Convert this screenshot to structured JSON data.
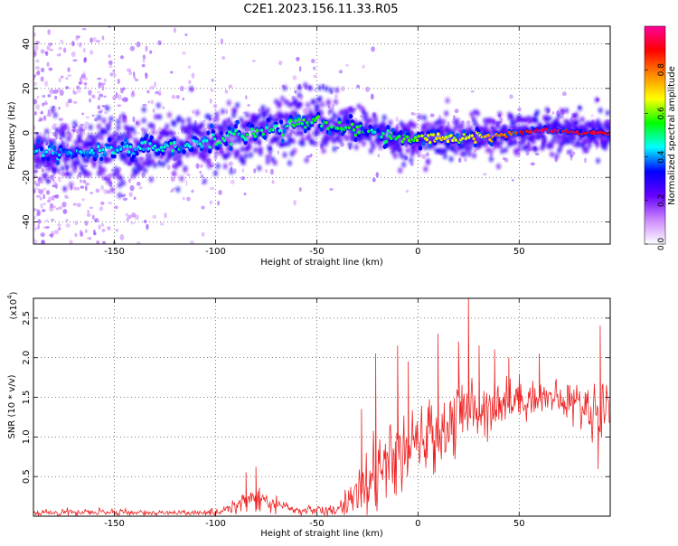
{
  "title": "C2E1.2023.156.11.33.R05",
  "chart_data": [
    {
      "type": "heatmap",
      "xlabel": "Height of straight line (km)",
      "ylabel": "Frequency (Hz)",
      "xlim": [
        -190,
        95
      ],
      "ylim": [
        -50,
        48
      ],
      "x_ticks": [
        -150,
        -100,
        -50,
        0,
        50
      ],
      "y_ticks": [
        40,
        20,
        0,
        -20,
        -40
      ],
      "grid": true,
      "colorbar": {
        "label": "Normalized spectral amplitude",
        "range": [
          0,
          1
        ],
        "ticks": [
          "0.0",
          "0.2",
          "0.4",
          "0.6",
          "0.8"
        ],
        "colors": [
          "#ffffff",
          "#cc88ff",
          "#6600ff",
          "#0000ff",
          "#00ffff",
          "#00ff00",
          "#ffff00",
          "#ff8800",
          "#ff0000",
          "#ff0099"
        ]
      },
      "ridge": {
        "x": [
          -190,
          -175,
          -160,
          -150,
          -140,
          -130,
          -120,
          -110,
          -100,
          -90,
          -80,
          -70,
          -60,
          -50,
          -40,
          -30,
          -20,
          -10,
          0,
          10,
          20,
          30,
          40,
          50,
          60,
          70,
          80,
          95
        ],
        "y": [
          -8,
          -9,
          -8,
          -7,
          -7,
          -6,
          -6,
          -5,
          -3,
          -2,
          0,
          2,
          4,
          6,
          3,
          2,
          0,
          -3,
          -3,
          -2,
          -3,
          -2,
          -1,
          0,
          1,
          1,
          0,
          0
        ],
        "peak_amplitude": [
          0.45,
          0.4,
          0.45,
          0.45,
          0.45,
          0.45,
          0.5,
          0.45,
          0.5,
          0.5,
          0.55,
          0.5,
          0.55,
          0.55,
          0.55,
          0.55,
          0.5,
          0.55,
          0.6,
          0.7,
          0.65,
          0.7,
          0.8,
          0.85,
          0.95,
          0.95,
          0.9,
          0.95
        ]
      }
    },
    {
      "type": "line",
      "xlabel": "Height of straight line (km)",
      "ylabel": "SNR (10 * v/v)",
      "scale_label": "(x10",
      "scale_exp": "4",
      "scale_close": ")",
      "xlim": [
        -190,
        95
      ],
      "ylim": [
        0,
        2.75
      ],
      "x_ticks": [
        -150,
        -100,
        -50,
        0,
        50
      ],
      "y_ticks": [
        0.5,
        1.0,
        1.5,
        2.0,
        2.5
      ],
      "grid": true,
      "series": [
        {
          "color": "#ee2222",
          "envelope": {
            "x": [
              -190,
              -170,
              -150,
              -130,
              -110,
              -100,
              -92,
              -85,
              -80,
              -75,
              -70,
              -62,
              -55,
              -48,
              -40,
              -35,
              -30,
              -25,
              -20,
              -15,
              -10,
              -5,
              0,
              5,
              10,
              15,
              20,
              25,
              30,
              35,
              40,
              45,
              50,
              55,
              60,
              65,
              70,
              75,
              80,
              85,
              90,
              95
            ],
            "mean": [
              0.04,
              0.05,
              0.05,
              0.04,
              0.04,
              0.05,
              0.12,
              0.2,
              0.22,
              0.18,
              0.15,
              0.08,
              0.07,
              0.08,
              0.06,
              0.2,
              0.35,
              0.45,
              0.55,
              0.65,
              0.75,
              0.8,
              0.9,
              1.0,
              1.05,
              1.15,
              1.25,
              1.35,
              1.35,
              1.4,
              1.45,
              1.45,
              1.48,
              1.5,
              1.5,
              1.5,
              1.45,
              1.45,
              1.4,
              1.35,
              1.35,
              1.35
            ],
            "spread": [
              0.03,
              0.04,
              0.04,
              0.03,
              0.03,
              0.04,
              0.08,
              0.15,
              0.2,
              0.12,
              0.1,
              0.05,
              0.06,
              0.08,
              0.05,
              0.2,
              0.3,
              0.4,
              0.4,
              0.4,
              0.4,
              0.4,
              0.4,
              0.4,
              0.4,
              0.45,
              0.45,
              0.4,
              0.4,
              0.35,
              0.3,
              0.3,
              0.25,
              0.2,
              0.2,
              0.2,
              0.2,
              0.25,
              0.25,
              0.3,
              0.4,
              0.4
            ]
          },
          "spikes": [
            {
              "x": -80,
              "y": 0.62
            },
            {
              "x": -85,
              "y": 0.55
            },
            {
              "x": -28,
              "y": 1.35
            },
            {
              "x": -21,
              "y": 2.05
            },
            {
              "x": -10,
              "y": 2.15
            },
            {
              "x": -5,
              "y": 1.95
            },
            {
              "x": 10,
              "y": 2.3
            },
            {
              "x": 20,
              "y": 2.2
            },
            {
              "x": 25,
              "y": 2.78
            },
            {
              "x": 30,
              "y": 2.15
            },
            {
              "x": 38,
              "y": 2.1
            },
            {
              "x": 45,
              "y": 2.0
            },
            {
              "x": 60,
              "y": 2.05
            },
            {
              "x": 90,
              "y": 2.4
            },
            {
              "x": 89,
              "y": 0.6
            }
          ]
        }
      ]
    }
  ]
}
